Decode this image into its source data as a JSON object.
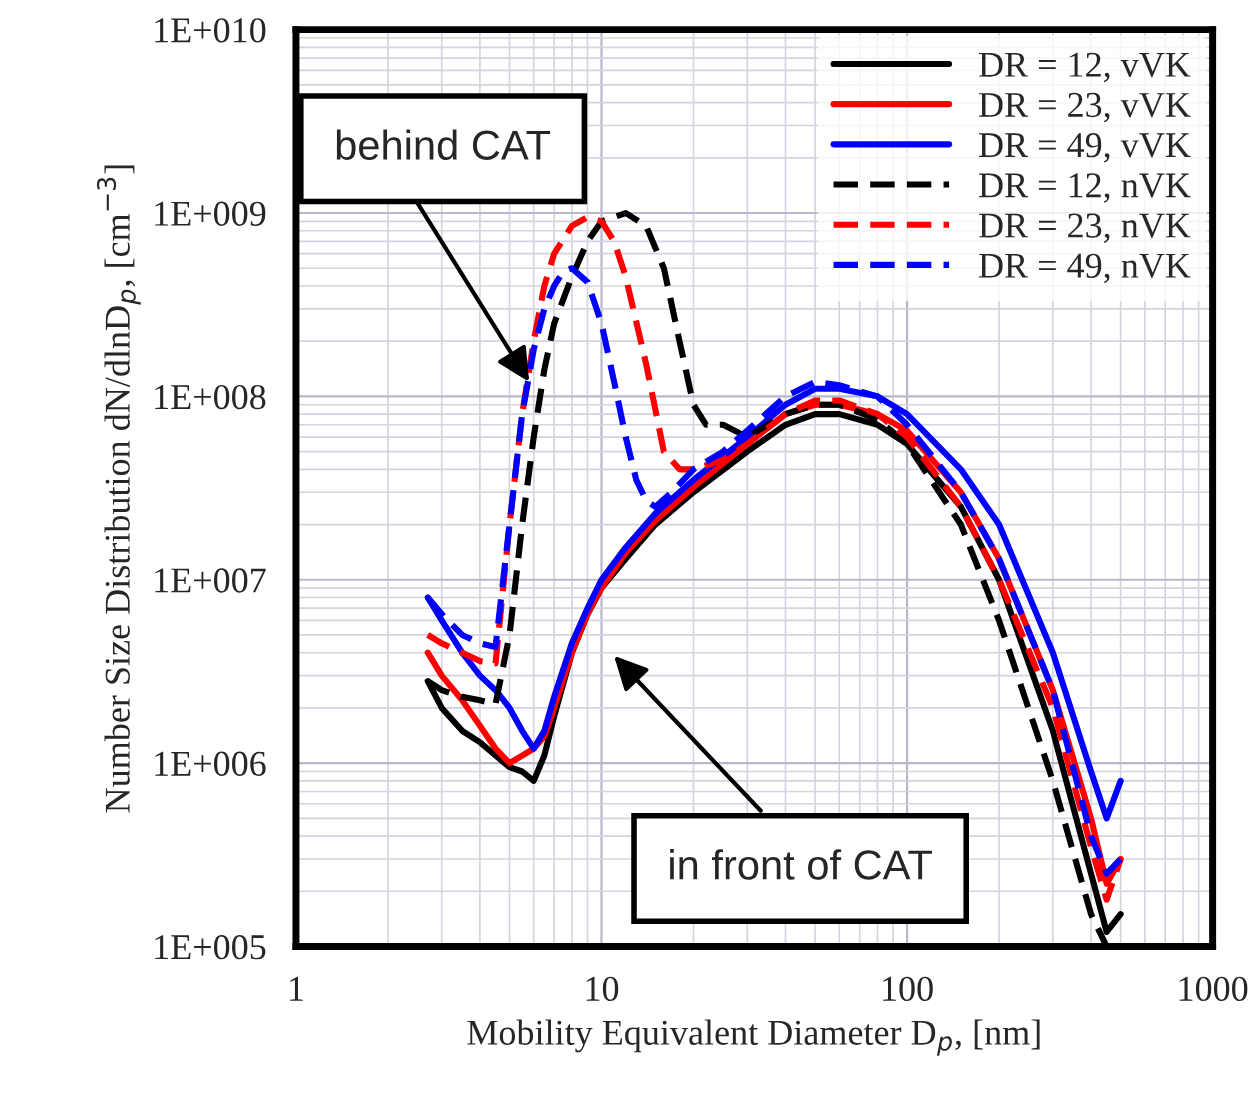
{
  "chart_data": {
    "type": "line",
    "xlabel": "Mobility Equivalent Diameter D$_{p}$, [nm]",
    "ylabel": "Number Size Distribution dN/dlnD$_{p}$, [cm$^{−3}$]",
    "log": "xy",
    "grid": true,
    "legend": "top right",
    "xlim": [
      1,
      1000
    ],
    "xticks": [
      1,
      10,
      100,
      1000
    ],
    "ylim": [
      100000,
      10000000000
    ],
    "yticks": [
      {
        "value": 100000,
        "label": "1E+005"
      },
      {
        "value": 1000000,
        "label": "1E+006"
      },
      {
        "value": 10000000,
        "label": "1E+007"
      },
      {
        "value": 100000000,
        "label": "1E+008"
      },
      {
        "value": 1000000000,
        "label": "1E+009"
      },
      {
        "value": 10000000000,
        "label": "1E+010"
      }
    ],
    "annotations": [
      {
        "text": "behind CAT",
        "x": 5.8,
        "y": 120000000
      },
      "in front of CAT"
    ],
    "series": [
      {
        "name": "DR = 12, vVK",
        "color": "#000000",
        "line_style": "solid",
        "x": [
          2.7,
          3,
          3.5,
          4,
          4.5,
          5,
          5.5,
          6,
          6.5,
          7,
          8,
          9,
          10,
          12,
          15,
          20,
          30,
          40,
          50,
          60,
          80,
          100,
          150,
          200,
          300,
          400,
          450,
          500
        ],
        "values": [
          2800000,
          2000000,
          1500000,
          1300000,
          1100000,
          950000,
          900000,
          800000,
          1100000,
          1800000,
          4000000,
          6500000,
          9000000,
          13000000,
          20000000,
          30000000,
          50000000,
          70000000,
          80000000,
          80000000,
          70000000,
          55000000,
          25000000,
          10000000,
          1500000,
          250000,
          120000,
          150000
        ]
      },
      {
        "name": "DR = 23, vVK",
        "color": "#ff0000",
        "line_style": "solid",
        "x": [
          2.7,
          3,
          3.5,
          4,
          4.5,
          5,
          5.5,
          6,
          6.5,
          7,
          8,
          9,
          10,
          12,
          15,
          20,
          30,
          40,
          50,
          60,
          80,
          100,
          150,
          200,
          300,
          400,
          450,
          500
        ],
        "values": [
          4000000,
          3000000,
          2200000,
          1600000,
          1200000,
          1000000,
          1100000,
          1200000,
          1400000,
          2000000,
          4000000,
          6500000,
          9000000,
          14000000,
          21000000,
          32000000,
          55000000,
          80000000,
          90000000,
          90000000,
          80000000,
          65000000,
          30000000,
          13000000,
          2500000,
          500000,
          220000,
          300000
        ]
      },
      {
        "name": "DR = 49, vVK",
        "color": "#0000ff",
        "line_style": "solid",
        "x": [
          2.7,
          3,
          3.5,
          4,
          4.5,
          5,
          5.5,
          6,
          6.5,
          7,
          8,
          9,
          10,
          12,
          15,
          20,
          30,
          40,
          50,
          60,
          80,
          100,
          150,
          200,
          300,
          400,
          450,
          500
        ],
        "values": [
          8000000,
          6000000,
          4000000,
          3000000,
          2500000,
          2000000,
          1500000,
          1200000,
          1500000,
          2300000,
          4500000,
          7000000,
          10000000,
          15000000,
          23000000,
          35000000,
          60000000,
          90000000,
          110000000,
          110000000,
          100000000,
          80000000,
          40000000,
          20000000,
          4000000,
          900000,
          500000,
          800000
        ]
      },
      {
        "name": "DR = 12, nVK",
        "color": "#000000",
        "line_style": "dashed",
        "x": [
          2.7,
          3,
          3.5,
          4,
          4.5,
          5,
          5.5,
          6,
          6.5,
          7,
          8,
          9,
          10,
          12,
          14,
          16,
          18,
          20,
          22,
          25,
          30,
          40,
          50,
          60,
          80,
          100,
          150,
          200,
          300,
          400,
          450
        ],
        "values": [
          2800000,
          2500000,
          2300000,
          2200000,
          2100000,
          5000000,
          20000000,
          60000000,
          140000000,
          250000000,
          450000000,
          700000000,
          900000000,
          1000000000,
          850000000,
          500000000,
          200000000,
          90000000,
          70000000,
          70000000,
          60000000,
          80000000,
          90000000,
          90000000,
          75000000,
          55000000,
          20000000,
          6000000,
          800000,
          150000,
          100000
        ]
      },
      {
        "name": "DR = 23, nVK",
        "color": "#ff0000",
        "line_style": "dashed",
        "x": [
          2.7,
          3,
          3.5,
          4,
          4.5,
          5,
          5.5,
          6,
          6.5,
          7,
          8,
          9,
          10,
          11,
          12,
          14,
          16,
          18,
          20,
          25,
          30,
          40,
          50,
          60,
          80,
          100,
          150,
          200,
          300,
          400,
          450,
          500
        ],
        "values": [
          5000000,
          4500000,
          4000000,
          3600000,
          3500000,
          20000000,
          80000000,
          200000000,
          400000000,
          600000000,
          850000000,
          950000000,
          900000000,
          700000000,
          450000000,
          150000000,
          50000000,
          40000000,
          40000000,
          45000000,
          55000000,
          80000000,
          95000000,
          95000000,
          80000000,
          60000000,
          25000000,
          10000000,
          2000000,
          350000,
          180000,
          300000
        ]
      },
      {
        "name": "DR = 49, nVK",
        "color": "#0000ff",
        "line_style": "dashed",
        "x": [
          2.7,
          3,
          3.5,
          4,
          4.5,
          5,
          5.5,
          6,
          6.5,
          7,
          7.5,
          8,
          9,
          10,
          11,
          12,
          13,
          14,
          15,
          17,
          20,
          25,
          30,
          40,
          50,
          60,
          80,
          100,
          150,
          200,
          300,
          400,
          450,
          500
        ],
        "values": [
          8000000,
          6500000,
          5000000,
          4500000,
          4300000,
          20000000,
          80000000,
          180000000,
          300000000,
          400000000,
          480000000,
          500000000,
          420000000,
          250000000,
          120000000,
          60000000,
          35000000,
          27000000,
          25000000,
          30000000,
          40000000,
          50000000,
          65000000,
          100000000,
          120000000,
          115000000,
          100000000,
          70000000,
          30000000,
          13000000,
          2500000,
          400000,
          250000,
          300000
        ]
      }
    ]
  }
}
